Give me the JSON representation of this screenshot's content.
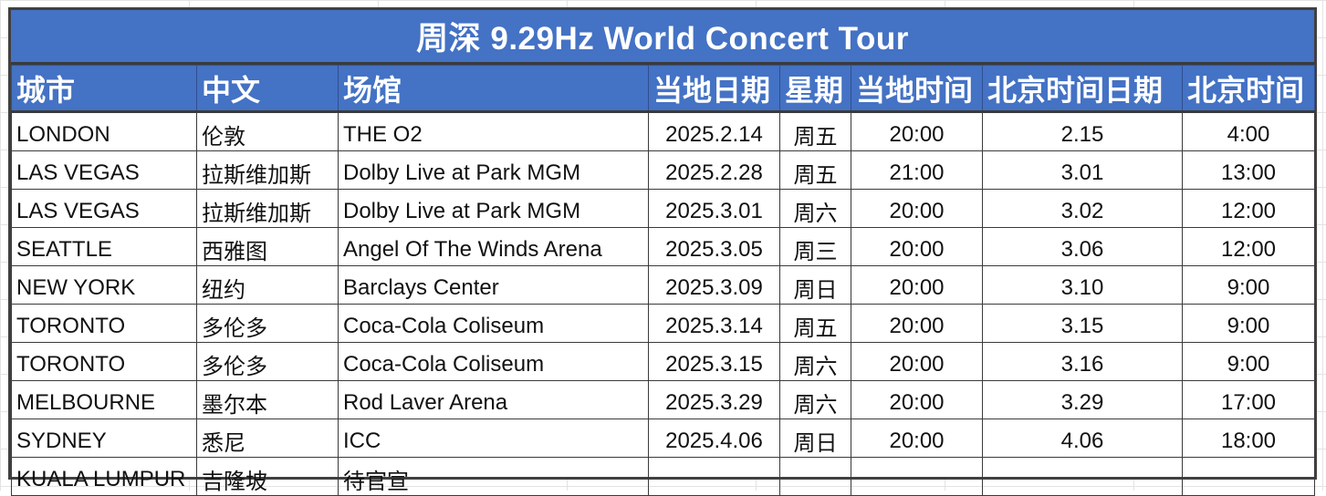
{
  "title": "周深 9.29Hz World Concert Tour",
  "headers": {
    "city": "城市",
    "chinese": "中文",
    "venue": "场馆",
    "local_date": "当地日期",
    "weekday": "星期",
    "local_time": "当地时间",
    "beijing_date": "北京时间日期",
    "beijing_time": "北京时间"
  },
  "rows": [
    {
      "city": "LONDON",
      "chinese": "伦敦",
      "venue": "THE O2",
      "local_date": "2025.2.14",
      "weekday": "周五",
      "local_time": "20:00",
      "beijing_date": "2.15",
      "beijing_time": "4:00"
    },
    {
      "city": "LAS VEGAS",
      "chinese": "拉斯维加斯",
      "venue": "Dolby Live at Park MGM",
      "local_date": "2025.2.28",
      "weekday": "周五",
      "local_time": "21:00",
      "beijing_date": "3.01",
      "beijing_time": "13:00"
    },
    {
      "city": "LAS VEGAS",
      "chinese": "拉斯维加斯",
      "venue": "Dolby Live at Park MGM",
      "local_date": "2025.3.01",
      "weekday": "周六",
      "local_time": "20:00",
      "beijing_date": "3.02",
      "beijing_time": "12:00"
    },
    {
      "city": "SEATTLE",
      "chinese": "西雅图",
      "venue": "Angel Of The Winds Arena",
      "local_date": "2025.3.05",
      "weekday": "周三",
      "local_time": "20:00",
      "beijing_date": "3.06",
      "beijing_time": "12:00"
    },
    {
      "city": "NEW YORK",
      "chinese": "纽约",
      "venue": "Barclays Center",
      "local_date": "2025.3.09",
      "weekday": "周日",
      "local_time": "20:00",
      "beijing_date": "3.10",
      "beijing_time": "9:00"
    },
    {
      "city": "TORONTO",
      "chinese": "多伦多",
      "venue": "Coca-Cola Coliseum",
      "local_date": "2025.3.14",
      "weekday": "周五",
      "local_time": "20:00",
      "beijing_date": "3.15",
      "beijing_time": "9:00"
    },
    {
      "city": "TORONTO",
      "chinese": "多伦多",
      "venue": "Coca-Cola Coliseum",
      "local_date": "2025.3.15",
      "weekday": "周六",
      "local_time": "20:00",
      "beijing_date": "3.16",
      "beijing_time": "9:00"
    },
    {
      "city": "MELBOURNE",
      "chinese": "墨尔本",
      "venue": "Rod Laver Arena",
      "local_date": "2025.3.29",
      "weekday": "周六",
      "local_time": "20:00",
      "beijing_date": "3.29",
      "beijing_time": "17:00"
    },
    {
      "city": "SYDNEY",
      "chinese": "悉尼",
      "venue": "ICC",
      "local_date": "2025.4.06",
      "weekday": "周日",
      "local_time": "20:00",
      "beijing_date": "4.06",
      "beijing_time": "18:00"
    },
    {
      "city": "KUALA LUMPUR",
      "chinese": "吉隆坡",
      "venue": "待官宣",
      "local_date": "",
      "weekday": "",
      "local_time": "",
      "beijing_date": "",
      "beijing_time": ""
    }
  ],
  "colors": {
    "header_bg": "#4472c4",
    "header_text": "#ffffff",
    "pending_text": "#2e75b6"
  }
}
